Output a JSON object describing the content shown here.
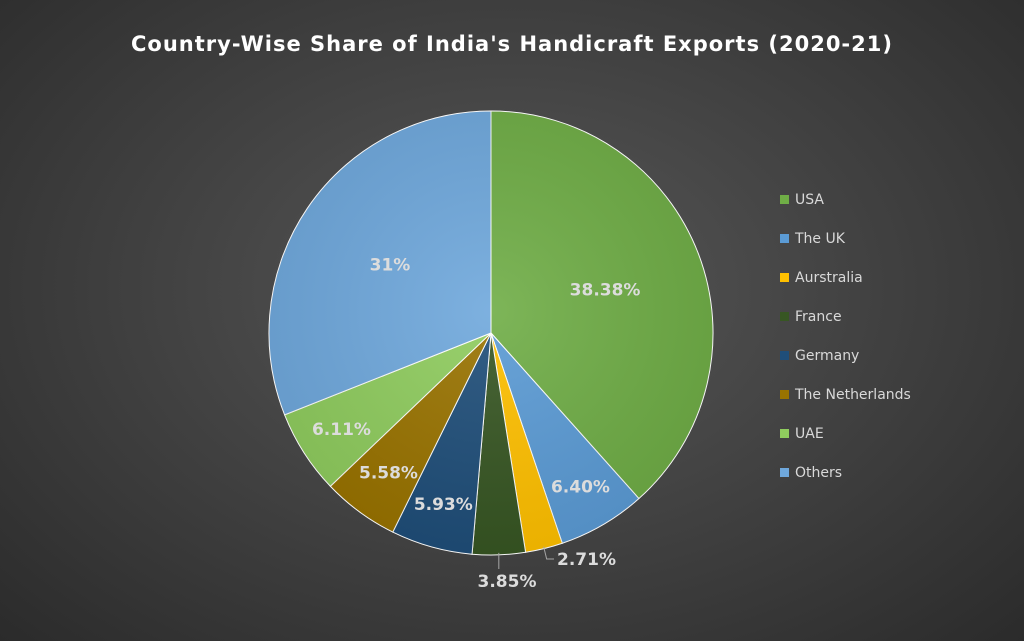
{
  "chart_data": {
    "type": "pie",
    "title": "Country-Wise Share of India's Handicraft Exports (2020-21)",
    "slices": [
      {
        "name": "USA",
        "value": 38.38,
        "label": "38.38%",
        "color": "#6fad46"
      },
      {
        "name": "The UK",
        "value": 6.4,
        "label": "6.40%",
        "color": "#5b9bd5"
      },
      {
        "name": "Aurstralia",
        "value": 2.71,
        "label": "2.71%",
        "color": "#ffc000"
      },
      {
        "name": "France",
        "value": 3.85,
        "label": "3.85%",
        "color": "#375623"
      },
      {
        "name": "Germany",
        "value": 5.93,
        "label": "5.93%",
        "color": "#1f4e79"
      },
      {
        "name": "The Netherlands",
        "value": 5.58,
        "label": "5.58%",
        "color": "#997300"
      },
      {
        "name": "UAE",
        "value": 6.11,
        "label": "6.11%",
        "color": "#8fcc5e"
      },
      {
        "name": "Others",
        "value": 31,
        "label": "31%",
        "color": "#6fa8dc"
      }
    ],
    "legend_position": "right",
    "label_color": "#dcdcdc",
    "leader_line_color": "#a6a6a6"
  }
}
